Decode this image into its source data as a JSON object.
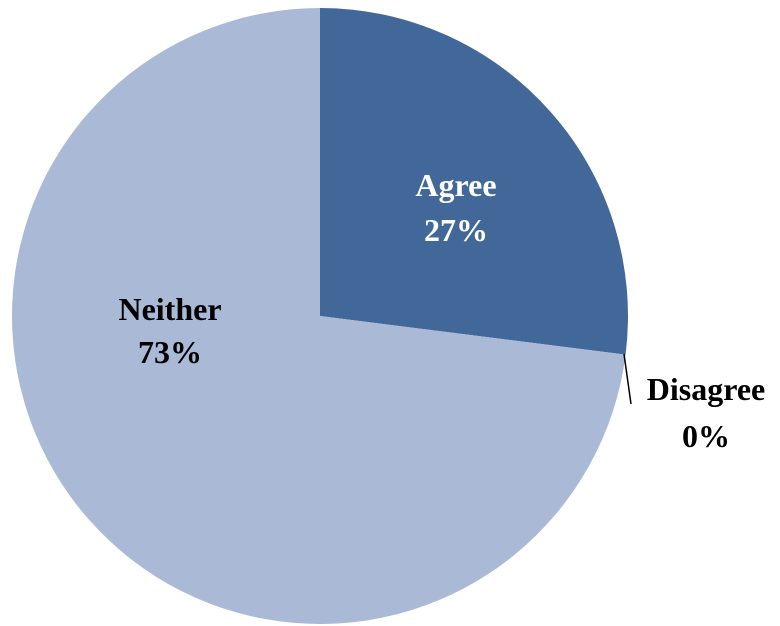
{
  "chart_data": {
    "type": "pie",
    "title": "",
    "slices": [
      {
        "label": "Agree",
        "value": 27,
        "display": "27%",
        "color": "#416899",
        "label_color": "#ffffff"
      },
      {
        "label": "Disagree",
        "value": 0,
        "display": "0%",
        "color": "#ffffff",
        "label_color": "#000000"
      },
      {
        "label": "Neither",
        "value": 73,
        "display": "73%",
        "color": "#aab9d6",
        "label_color": "#000000"
      }
    ]
  }
}
